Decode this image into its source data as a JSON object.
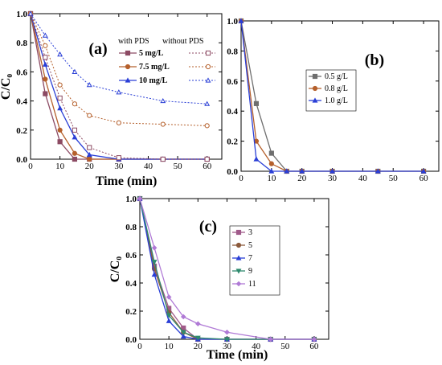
{
  "chart_data": [
    {
      "id": "a",
      "type": "line",
      "panel_label": "(a)",
      "xlabel": "Time (min)",
      "ylabel": "C/C₀",
      "xlim": [
        0,
        65
      ],
      "ylim": [
        0,
        1.0
      ],
      "xticks": [
        "0",
        "10",
        "20",
        "30",
        "40",
        "50",
        "60"
      ],
      "yticks": [
        "0.0",
        "0.2",
        "0.4",
        "0.6",
        "0.8",
        "1.0"
      ],
      "legend": {
        "header_left": "with PDS",
        "header_right": "without PDS",
        "placement": "top-right"
      },
      "series": [
        {
          "name": "5 mg/L",
          "group": "with PDS",
          "color": "#8c4a63",
          "marker": "square-filled",
          "dash": false,
          "x": [
            0,
            5,
            10,
            15,
            20,
            30,
            45,
            60
          ],
          "y": [
            1.0,
            0.45,
            0.12,
            0.0,
            0.0,
            0.0,
            0.0,
            0.0
          ]
        },
        {
          "name": "7.5 mg/L",
          "group": "with PDS",
          "color": "#b5602c",
          "marker": "circle-filled",
          "dash": false,
          "x": [
            0,
            5,
            10,
            15,
            20,
            30,
            45,
            60
          ],
          "y": [
            1.0,
            0.55,
            0.2,
            0.04,
            0.0,
            0.0,
            0.0,
            0.0
          ]
        },
        {
          "name": "10 mg/L",
          "group": "with PDS",
          "color": "#2a3fd6",
          "marker": "triangle-filled",
          "dash": false,
          "x": [
            0,
            5,
            10,
            15,
            20,
            30,
            45,
            60
          ],
          "y": [
            1.0,
            0.65,
            0.35,
            0.15,
            0.03,
            0.0,
            0.0,
            0.0
          ]
        },
        {
          "name": "5 mg/L",
          "group": "without PDS",
          "color": "#8c4a63",
          "marker": "square-open",
          "dash": true,
          "x": [
            0,
            5,
            10,
            15,
            20,
            30,
            45,
            60
          ],
          "y": [
            1.0,
            0.7,
            0.42,
            0.2,
            0.08,
            0.01,
            0.0,
            0.0
          ]
        },
        {
          "name": "7.5 mg/L",
          "group": "without PDS",
          "color": "#b5602c",
          "marker": "circle-open",
          "dash": true,
          "x": [
            0,
            5,
            10,
            15,
            20,
            30,
            45,
            60
          ],
          "y": [
            1.0,
            0.78,
            0.51,
            0.38,
            0.3,
            0.25,
            0.24,
            0.23
          ]
        },
        {
          "name": "10 mg/L",
          "group": "without PDS",
          "color": "#2a3fd6",
          "marker": "triangle-open",
          "dash": true,
          "x": [
            0,
            5,
            10,
            15,
            20,
            30,
            45,
            60
          ],
          "y": [
            1.0,
            0.85,
            0.72,
            0.6,
            0.51,
            0.46,
            0.4,
            0.38
          ]
        }
      ]
    },
    {
      "id": "b",
      "type": "line",
      "panel_label": "(b)",
      "xlabel": "",
      "ylabel": "",
      "xlim": [
        0,
        65
      ],
      "ylim": [
        0,
        1.0
      ],
      "xticks": [
        "0",
        "10",
        "20",
        "30",
        "40",
        "50",
        "60"
      ],
      "yticks": [
        "0.0",
        "0.2",
        "0.4",
        "0.6",
        "0.8",
        "1.0"
      ],
      "legend": {
        "placement": "center-right"
      },
      "series": [
        {
          "name": "0.5 g/L",
          "color": "#6e6e6e",
          "marker": "square-filled",
          "x": [
            0,
            5,
            10,
            15,
            20,
            30,
            45,
            60
          ],
          "y": [
            1.0,
            0.45,
            0.12,
            0.0,
            0.0,
            0.0,
            0.0,
            0.0
          ]
        },
        {
          "name": "0.8 g/L",
          "color": "#b5602c",
          "marker": "circle-filled",
          "x": [
            0,
            5,
            10,
            15,
            20,
            30,
            45,
            60
          ],
          "y": [
            1.0,
            0.2,
            0.05,
            0.0,
            0.0,
            0.0,
            0.0,
            0.0
          ]
        },
        {
          "name": "1.0 g/L",
          "color": "#2a3fd6",
          "marker": "triangle-filled",
          "x": [
            0,
            5,
            10,
            15,
            20,
            30,
            45,
            60
          ],
          "y": [
            1.0,
            0.08,
            0.0,
            0.0,
            0.0,
            0.0,
            0.0,
            0.0
          ]
        }
      ]
    },
    {
      "id": "c",
      "type": "line",
      "panel_label": "(c)",
      "xlabel": "Time (min)",
      "ylabel": "C/C₀",
      "xlim": [
        0,
        65
      ],
      "ylim": [
        0,
        1.0
      ],
      "xticks": [
        "0",
        "10",
        "20",
        "30",
        "40",
        "50",
        "60"
      ],
      "yticks": [
        "0.0",
        "0.2",
        "0.4",
        "0.6",
        "0.8",
        "1.0"
      ],
      "legend": {
        "placement": "center-right"
      },
      "series": [
        {
          "name": "3",
          "color": "#a05a8a",
          "marker": "square-filled",
          "x": [
            0,
            5,
            10,
            15,
            20,
            30,
            45,
            60
          ],
          "y": [
            1.0,
            0.52,
            0.22,
            0.08,
            0.0,
            0.0,
            0.0,
            0.0
          ]
        },
        {
          "name": "5",
          "color": "#8c5a3c",
          "marker": "circle-filled",
          "x": [
            0,
            5,
            10,
            15,
            20,
            30,
            45,
            60
          ],
          "y": [
            1.0,
            0.5,
            0.19,
            0.05,
            0.0,
            0.0,
            0.0,
            0.0
          ]
        },
        {
          "name": "7",
          "color": "#2a3fd6",
          "marker": "triangle-filled",
          "x": [
            0,
            5,
            10,
            15,
            20,
            30,
            45,
            60
          ],
          "y": [
            1.0,
            0.46,
            0.13,
            0.02,
            0.0,
            0.0,
            0.0,
            0.0
          ]
        },
        {
          "name": "9",
          "color": "#2f8a6e",
          "marker": "triangle-down-filled",
          "x": [
            0,
            5,
            10,
            15,
            20,
            30,
            45,
            60
          ],
          "y": [
            1.0,
            0.55,
            0.17,
            0.05,
            0.01,
            0.0,
            0.0,
            0.0
          ]
        },
        {
          "name": "11",
          "color": "#b07ad6",
          "marker": "diamond-filled",
          "x": [
            0,
            5,
            10,
            15,
            20,
            30,
            45,
            60
          ],
          "y": [
            1.0,
            0.65,
            0.3,
            0.16,
            0.11,
            0.05,
            0.0,
            0.0
          ]
        }
      ]
    }
  ]
}
